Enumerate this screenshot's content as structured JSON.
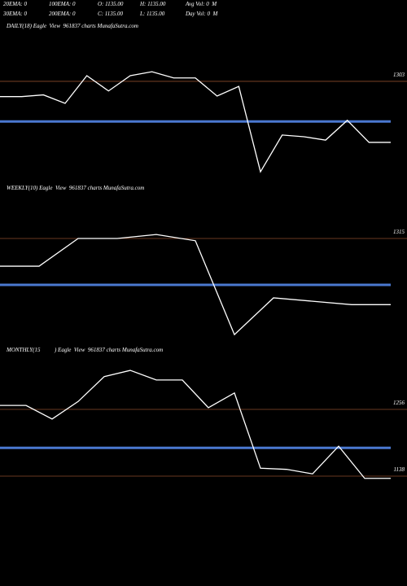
{
  "header": {
    "rows": [
      [
        "20EMA: 0",
        "100EMA: 0",
        "O: 1135.00",
        "H: 1135.00",
        "Avg Vol: 0  M"
      ],
      [
        "30EMA: 0",
        "200EMA: 0",
        "C: 1135.00",
        "L: 1135.00",
        "Day Vol: 0  M"
      ]
    ]
  },
  "chart_data": [
    {
      "type": "line",
      "title": "DAILY(18) Eagle  View  961837 charts MunafaSutra.com",
      "values": [
        1276,
        1276,
        1279,
        1264,
        1313,
        1286,
        1313,
        1320,
        1309,
        1309,
        1277,
        1294,
        1143,
        1208,
        1205,
        1199,
        1234,
        1195,
        1195
      ],
      "color": "#ffffff",
      "ylim": [
        1120,
        1390
      ],
      "levels": [
        1303
      ],
      "level_color": "#8b4a2b",
      "avg_level": 1232,
      "avg_color": "#4a78d0"
    },
    {
      "type": "line",
      "title": "WEEKLY(10) Eagle  View  961837 charts MunafaSutra.com",
      "values": [
        1266,
        1266,
        1315,
        1315,
        1322,
        1311,
        1145,
        1210,
        1204,
        1198,
        1198
      ],
      "color": "#ffffff",
      "ylim": [
        1120,
        1390
      ],
      "levels": [
        1315
      ],
      "level_color": "#8b4a2b",
      "avg_level": 1233,
      "avg_color": "#4a78d0"
    },
    {
      "type": "line",
      "title": "MONTHLY(15          ) Eagle  View  961837 charts MunafaSutra.com",
      "values": [
        1263,
        1263,
        1239,
        1270,
        1314,
        1325,
        1308,
        1308,
        1259,
        1285,
        1152,
        1150,
        1142,
        1191,
        1134,
        1134
      ],
      "color": "#ffffff",
      "ylim": [
        1060,
        1350
      ],
      "levels": [
        1256,
        1138
      ],
      "level_color": "#8b4a2b",
      "avg_level": 1188,
      "avg_color": "#4a78d0"
    }
  ]
}
